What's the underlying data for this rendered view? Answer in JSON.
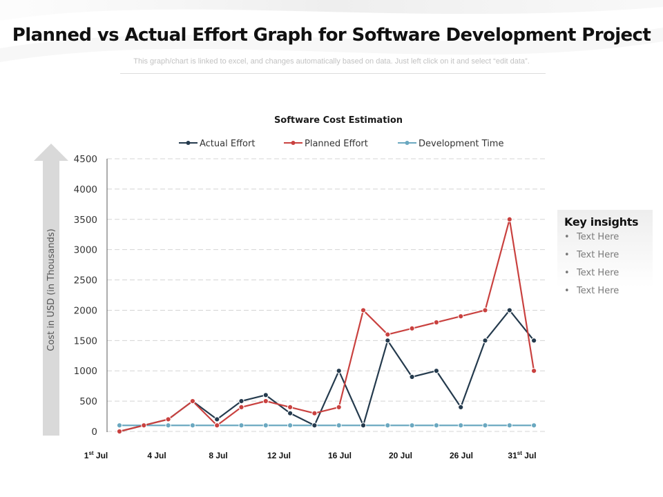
{
  "header": {
    "title": "Planned vs Actual Effort Graph for Software Development Project",
    "subtitle": "This graph/chart is linked to excel, and changes automatically based on data. Just left click on it and select “edit data”."
  },
  "insights": {
    "title": "Key insights",
    "items": [
      "Text Here",
      "Text Here",
      "Text Here",
      "Text Here"
    ],
    "bullet": "•"
  },
  "chart_data": {
    "type": "line",
    "title": "Software Cost Estimation",
    "ylabel": "Cost in USD (in Thousands)",
    "xlabel": "",
    "ylim": [
      0,
      4500
    ],
    "yticks": [
      0,
      500,
      1000,
      1500,
      2000,
      2500,
      3000,
      3500,
      4000,
      4500
    ],
    "grid": true,
    "legend_position": "top",
    "x_count": 18,
    "x_tick_labels": [
      {
        "index": 0,
        "label": "1",
        "sup": "st",
        "suffix": " Jul"
      },
      {
        "index": 2,
        "label": "4 Jul",
        "sup": "",
        "suffix": ""
      },
      {
        "index": 4,
        "label": "8 Jul",
        "sup": "",
        "suffix": ""
      },
      {
        "index": 7,
        "label": "12 Jul",
        "sup": "",
        "suffix": ""
      },
      {
        "index": 9,
        "label": "16 Jul",
        "sup": "",
        "suffix": ""
      },
      {
        "index": 11,
        "label": "20 Jul",
        "sup": "",
        "suffix": ""
      },
      {
        "index": 14,
        "label": "26 Jul",
        "sup": "",
        "suffix": ""
      },
      {
        "index": 16,
        "label": "31",
        "sup": "st",
        "suffix": " Jul"
      }
    ],
    "series": [
      {
        "name": "Actual Effort",
        "color": "#243a4d",
        "values": [
          0,
          100,
          200,
          500,
          200,
          500,
          600,
          300,
          100,
          1000,
          100,
          1500,
          900,
          1000,
          400,
          1500,
          2000,
          1500
        ]
      },
      {
        "name": "Planned Effort",
        "color": "#c9413f",
        "values": [
          0,
          100,
          200,
          500,
          100,
          400,
          500,
          400,
          300,
          400,
          2000,
          1600,
          1700,
          1800,
          1900,
          2000,
          3500,
          1000
        ]
      },
      {
        "name": "Development Time",
        "color": "#6aa8c0",
        "values": [
          100,
          100,
          100,
          100,
          100,
          100,
          100,
          100,
          100,
          100,
          100,
          100,
          100,
          100,
          100,
          100,
          100,
          100
        ]
      }
    ]
  },
  "colors": {
    "arrow": "#d9d9d9",
    "grid": "#d4d4d4",
    "axis": "#595959"
  }
}
